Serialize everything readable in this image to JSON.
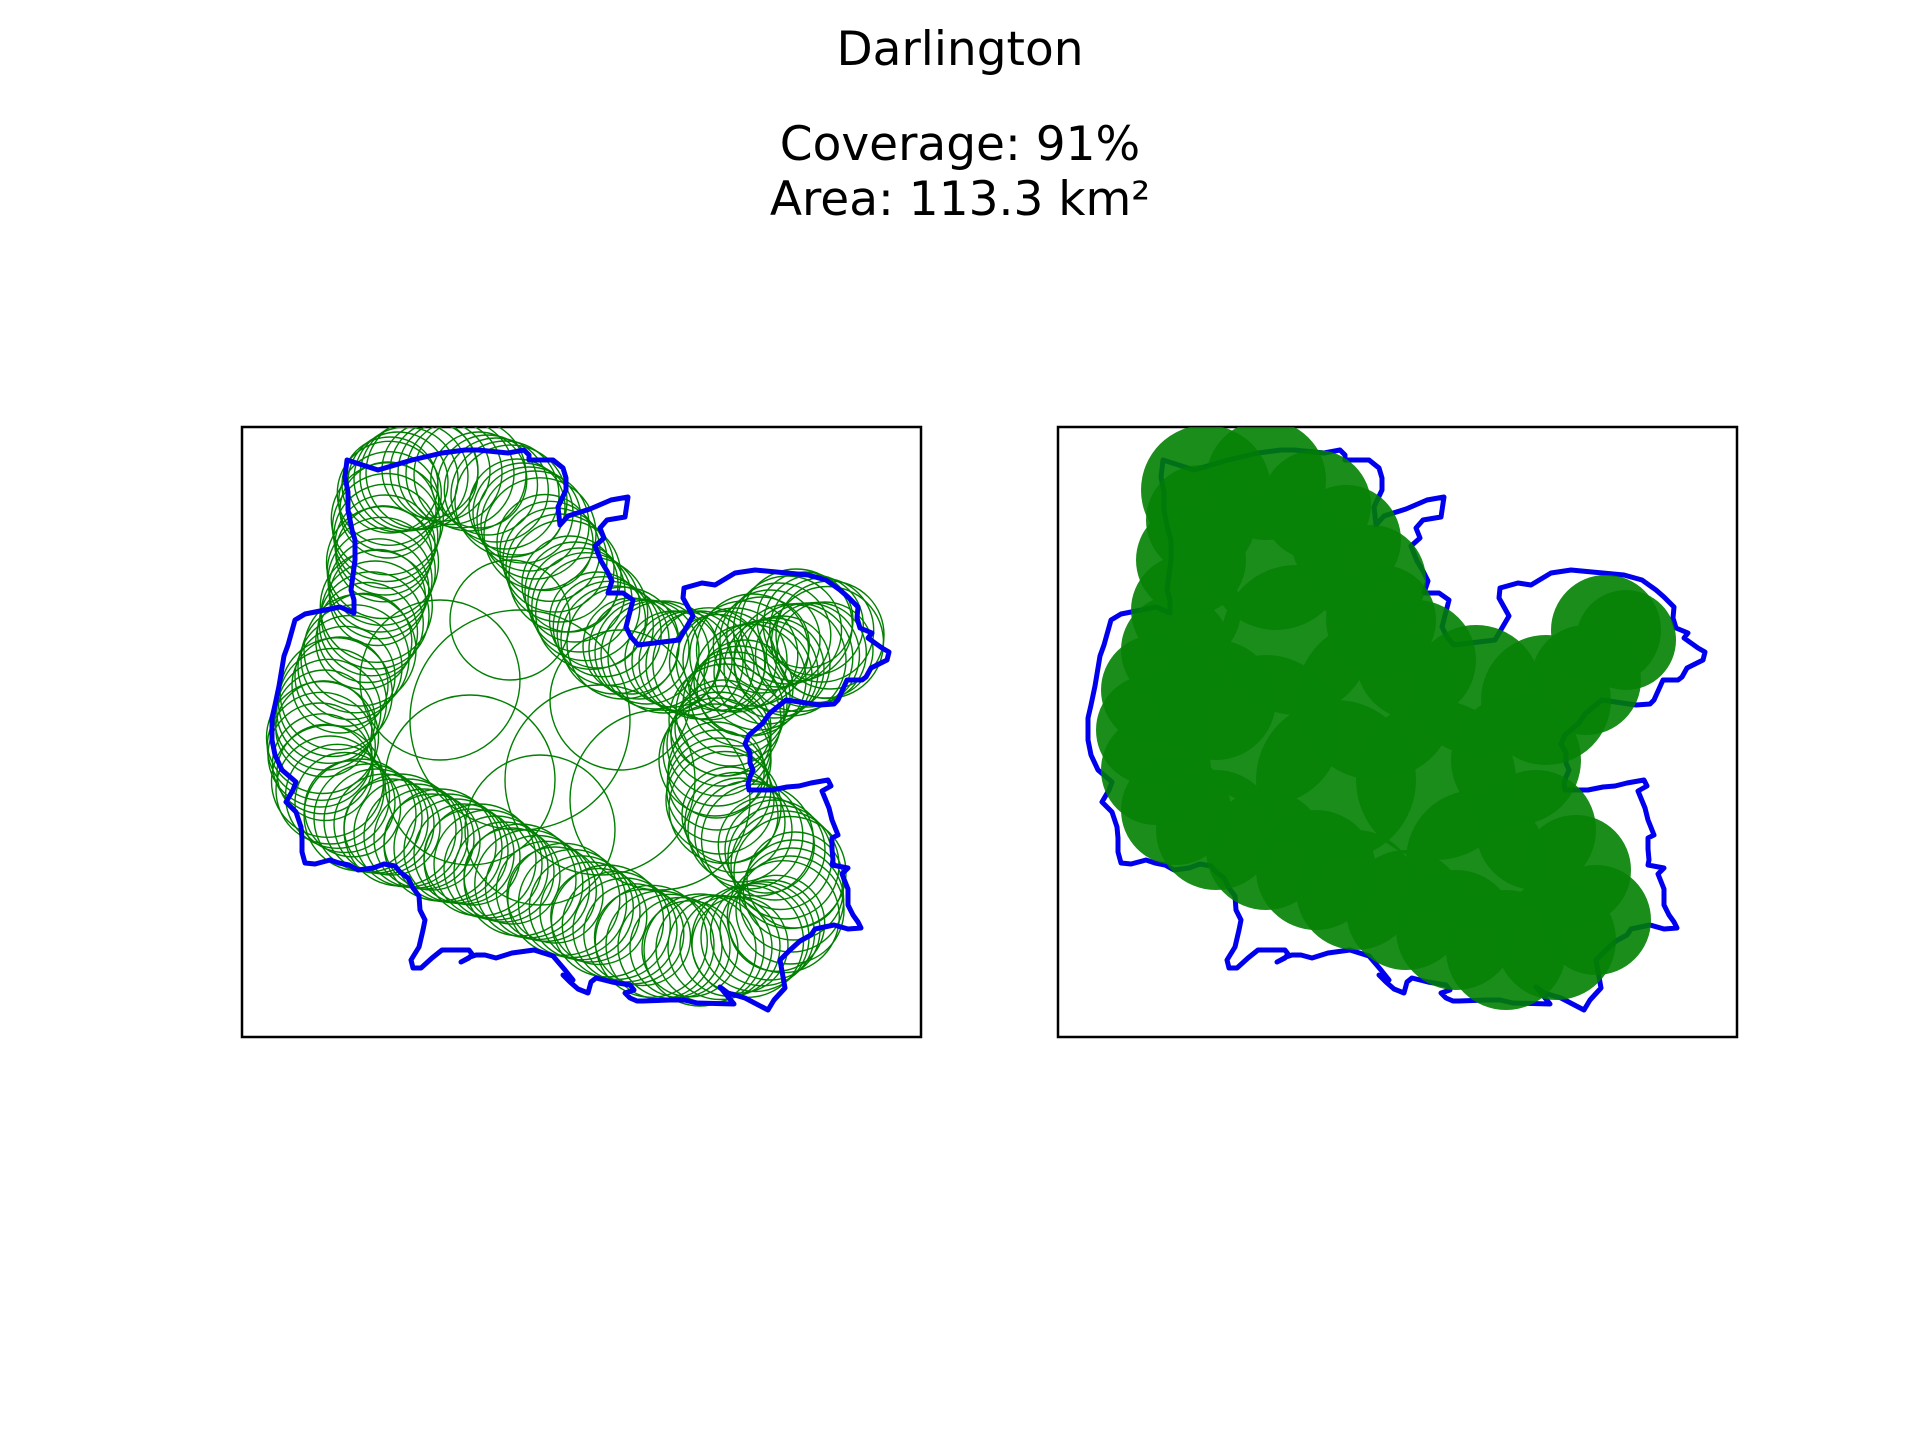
{
  "figure": {
    "title": "Darlington",
    "coverage_label": "Coverage: 91%",
    "area_label": "Area: 113.3 km²"
  },
  "panels": [
    {
      "name": "coverage-circles-outline",
      "circle_style": "outline"
    },
    {
      "name": "coverage-circles-filled",
      "circle_style": "filled"
    }
  ],
  "colors": {
    "boundary": "#0000ee",
    "coverage": "#007f00",
    "frame": "#000000",
    "background": "#ffffff"
  }
}
